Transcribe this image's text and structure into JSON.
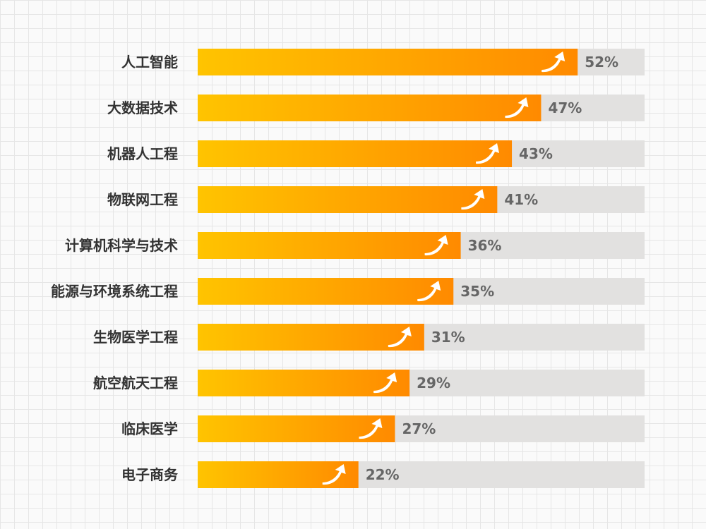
{
  "chart_data": {
    "type": "bar",
    "orientation": "horizontal",
    "categories": [
      "人工智能",
      "大数据技术",
      "机器人工程",
      "物联网工程",
      "计算机科学与技术",
      "能源与环境系统工程",
      "生物医学工程",
      "航空航天工程",
      "临床医学",
      "电子商务"
    ],
    "values": [
      52,
      47,
      43,
      41,
      36,
      35,
      31,
      29,
      27,
      22
    ],
    "value_labels": [
      "52%",
      "47%",
      "43%",
      "41%",
      "36%",
      "35%",
      "31%",
      "29%",
      "27%",
      "22%"
    ],
    "xlim": [
      0,
      100
    ],
    "title": "",
    "xlabel": "",
    "ylabel": "",
    "grid": false,
    "legend": "none",
    "icon": "trend-up-arrow-icon",
    "colors": {
      "bar_start": "#ffc400",
      "bar_end": "#ff8a00",
      "track": "#e2e1e0",
      "category_text": "#333333",
      "value_text": "#666666",
      "arrow": "#ffffff"
    }
  }
}
